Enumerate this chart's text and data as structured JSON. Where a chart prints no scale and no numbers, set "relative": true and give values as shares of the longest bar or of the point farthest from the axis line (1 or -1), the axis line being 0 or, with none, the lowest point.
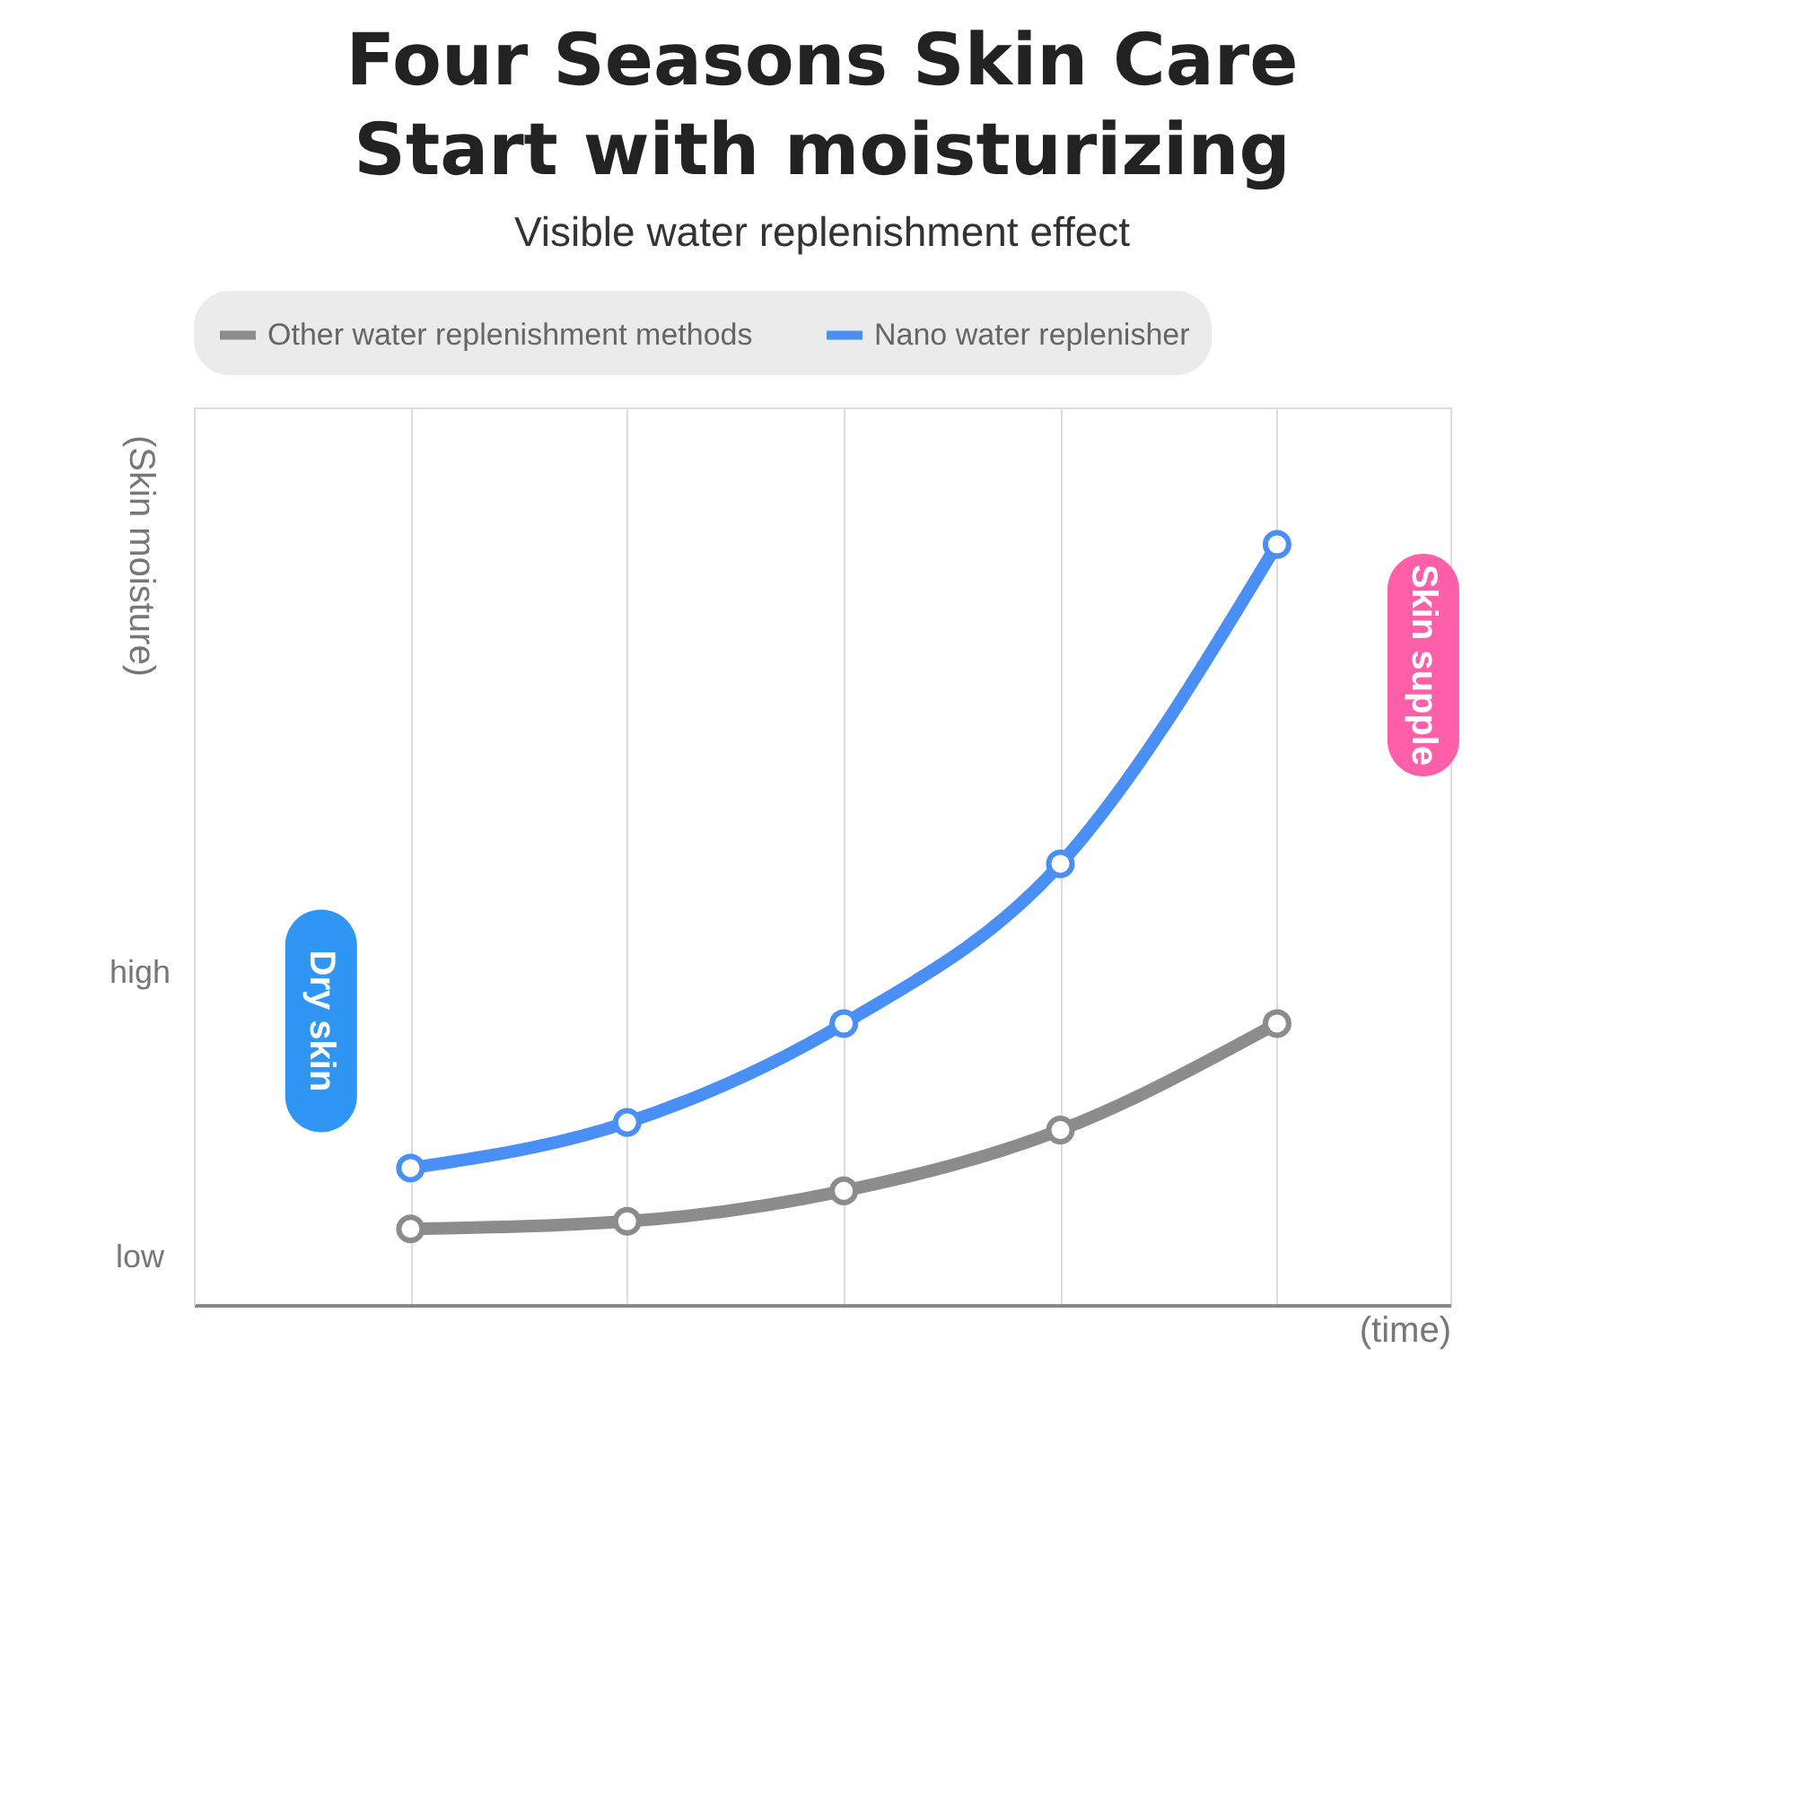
{
  "chart_data": {
    "type": "line",
    "title": "Four Seasons Skin Care\nStart with moisturizing",
    "subtitle": "Visible water replenishment effect",
    "xlabel": "(time)",
    "ylabel": "(Skin moisture)",
    "categories": [
      null,
      null,
      null,
      null,
      null
    ],
    "relative": true,
    "series": [
      {
        "name": "Other water replenishment methods",
        "color": "#8c8c8c",
        "values": [
          0.1,
          0.11,
          0.15,
          0.23,
          0.37
        ]
      },
      {
        "name": "Nano water replenisher",
        "color": "#4a8ff5",
        "values": [
          0.18,
          0.24,
          0.37,
          0.58,
          1
        ]
      }
    ],
    "annotations": [
      "high",
      "low",
      "Dry skin",
      "Skin supple"
    ],
    "grid": "x",
    "legend": "top",
    "marker": "circle",
    "line_style": "solid",
    "tick_labels": false
  }
}
